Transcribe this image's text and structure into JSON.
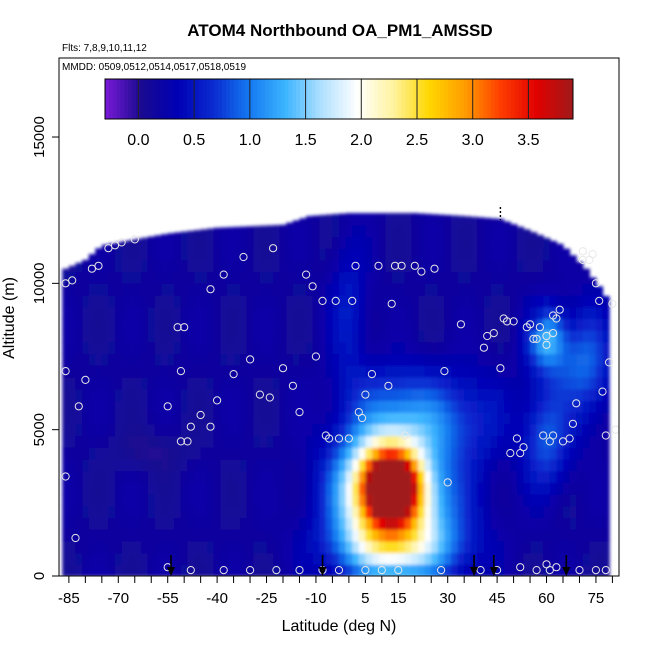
{
  "chart_data": {
    "type": "heatmap",
    "title": "ATOM4 Northbound OA_PM1_AMSSD",
    "flights_label": "Flts: 7,8,9,10,11,12",
    "dates_label": "MMDD: 0509,0512,0514,0517,0518,0519",
    "xlabel": "Latitude (deg N)",
    "ylabel": "Altitude (m)",
    "xlim": [
      -88,
      82
    ],
    "ylim": [
      0,
      17700
    ],
    "x_ticks": [
      -85,
      -70,
      -55,
      -40,
      -25,
      -10,
      5,
      15,
      30,
      45,
      60,
      75
    ],
    "x_tick_labels": [
      "-85",
      "-70",
      "-55",
      "-40",
      "-25",
      "-10",
      "5",
      "15",
      "30",
      "45",
      "60",
      "75"
    ],
    "y_ticks": [
      0,
      5000,
      10000,
      15000
    ],
    "y_tick_labels": [
      "0",
      "5000",
      "10000",
      "15000"
    ],
    "colorbar": {
      "vmin": -0.3,
      "vmax": 3.9,
      "ticks": [
        0.0,
        0.5,
        1.0,
        1.5,
        2.0,
        2.5,
        3.0,
        3.5
      ],
      "tick_labels": [
        "0.0",
        "0.5",
        "1.0",
        "1.5",
        "2.0",
        "2.5",
        "3.0",
        "3.5"
      ],
      "colors": [
        "#7a1ad8",
        "#1a0a90",
        "#0000b4",
        "#0a2ad0",
        "#1478f0",
        "#3cb4ff",
        "#aee0ff",
        "#ffffff",
        "#fff3a0",
        "#ffd700",
        "#ff9c00",
        "#ff3c00",
        "#e00000",
        "#a01a1a"
      ]
    },
    "background_value": 0.15,
    "envelope": [
      {
        "lat": -86,
        "top": 10500
      },
      {
        "lat": -80,
        "top": 10800
      },
      {
        "lat": -75,
        "top": 11300
      },
      {
        "lat": -65,
        "top": 11500
      },
      {
        "lat": -55,
        "top": 11700
      },
      {
        "lat": -40,
        "top": 11900
      },
      {
        "lat": -20,
        "top": 12000
      },
      {
        "lat": -12,
        "top": 12300
      },
      {
        "lat": 0,
        "top": 12400
      },
      {
        "lat": 20,
        "top": 12400
      },
      {
        "lat": 35,
        "top": 12300
      },
      {
        "lat": 46,
        "top": 12200
      },
      {
        "lat": 55,
        "top": 11800
      },
      {
        "lat": 65,
        "top": 11300
      },
      {
        "lat": 72,
        "top": 10500
      },
      {
        "lat": 76,
        "top": 9900
      },
      {
        "lat": 79,
        "top": 9400
      }
    ],
    "hotspots": [
      {
        "lat": 13,
        "alt": 3100,
        "value": 3.2,
        "sx": 5,
        "sy": 700
      },
      {
        "lat": 10,
        "alt": 3000,
        "value": 2.2,
        "sx": 9,
        "sy": 1300
      },
      {
        "lat": 16,
        "alt": 2300,
        "value": 1.6,
        "sx": 12,
        "sy": 1700
      },
      {
        "lat": 14,
        "alt": 1000,
        "value": 0.9,
        "sx": 14,
        "sy": 700
      },
      {
        "lat": 20,
        "alt": 5200,
        "value": 0.8,
        "sx": 12,
        "sy": 900
      },
      {
        "lat": 15,
        "alt": 6500,
        "value": 0.45,
        "sx": 12,
        "sy": 700
      },
      {
        "lat": 60,
        "alt": 8200,
        "value": 1.2,
        "sx": 4,
        "sy": 700
      },
      {
        "lat": 60,
        "alt": 4700,
        "value": 0.85,
        "sx": 5,
        "sy": 1200
      },
      {
        "lat": 73,
        "alt": 7300,
        "value": 0.75,
        "sx": 5,
        "sy": 1400
      },
      {
        "lat": 0,
        "alt": 9000,
        "value": 0.55,
        "sx": 4,
        "sy": 1600
      },
      {
        "lat": 38,
        "alt": 5500,
        "value": 0.4,
        "sx": 8,
        "sy": 1200
      },
      {
        "lat": 57,
        "alt": 8700,
        "value": -0.15,
        "sx": 2,
        "sy": 300
      },
      {
        "lat": -60,
        "alt": 4300,
        "value": 0.0,
        "sx": 8,
        "sy": 500
      },
      {
        "lat": 65,
        "alt": 7200,
        "value": 0.5,
        "sx": 6,
        "sy": 900
      }
    ],
    "observation_points": [
      [
        -86,
        7000
      ],
      [
        -86,
        10000
      ],
      [
        -84,
        10100
      ],
      [
        -86,
        3400
      ],
      [
        -82,
        5800
      ],
      [
        -80,
        6700
      ],
      [
        -78,
        10500
      ],
      [
        -76,
        10600
      ],
      [
        -73,
        11200
      ],
      [
        -71,
        11300
      ],
      [
        -69,
        11400
      ],
      [
        -65,
        11500
      ],
      [
        -55,
        5800
      ],
      [
        -52,
        8500
      ],
      [
        -50,
        8500
      ],
      [
        -51,
        4600
      ],
      [
        -49,
        4600
      ],
      [
        -51,
        7000
      ],
      [
        -48,
        5100
      ],
      [
        -45,
        5500
      ],
      [
        -42,
        5100
      ],
      [
        -42,
        9800
      ],
      [
        -40,
        6000
      ],
      [
        -38,
        10300
      ],
      [
        -35,
        6900
      ],
      [
        -32,
        10900
      ],
      [
        -30,
        7400
      ],
      [
        -27,
        6200
      ],
      [
        -24,
        6100
      ],
      [
        -23,
        11200
      ],
      [
        -20,
        7100
      ],
      [
        -17,
        6500
      ],
      [
        -15,
        5600
      ],
      [
        -13,
        10300
      ],
      [
        -11,
        9900
      ],
      [
        -10,
        7500
      ],
      [
        -8,
        9400
      ],
      [
        -7,
        4800
      ],
      [
        -6,
        4700
      ],
      [
        -4,
        9400
      ],
      [
        -3,
        4700
      ],
      [
        0,
        4700
      ],
      [
        1,
        9400
      ],
      [
        2,
        10600
      ],
      [
        3,
        5600
      ],
      [
        4,
        5400
      ],
      [
        5,
        6200
      ],
      [
        7,
        6900
      ],
      [
        9,
        10600
      ],
      [
        12,
        6500
      ],
      [
        13,
        9300
      ],
      [
        14,
        10600
      ],
      [
        16,
        10600
      ],
      [
        17,
        4800
      ],
      [
        20,
        10600
      ],
      [
        22,
        10400
      ],
      [
        26,
        10500
      ],
      [
        29,
        7000
      ],
      [
        30,
        3200
      ],
      [
        34,
        8600
      ],
      [
        41,
        7800
      ],
      [
        42,
        8200
      ],
      [
        44,
        8300
      ],
      [
        46,
        7100
      ],
      [
        47,
        8800
      ],
      [
        48,
        8700
      ],
      [
        50,
        8700
      ],
      [
        51,
        4700
      ],
      [
        49,
        4200
      ],
      [
        52,
        4200
      ],
      [
        53,
        4400
      ],
      [
        54,
        8500
      ],
      [
        55,
        8600
      ],
      [
        56,
        8100
      ],
      [
        57,
        8100
      ],
      [
        58,
        8500
      ],
      [
        59,
        4800
      ],
      [
        60,
        8200
      ],
      [
        60,
        7900
      ],
      [
        61,
        4600
      ],
      [
        62,
        4800
      ],
      [
        62,
        8300
      ],
      [
        62,
        8900
      ],
      [
        63,
        8800
      ],
      [
        64,
        9100
      ],
      [
        65,
        4600
      ],
      [
        67,
        4700
      ],
      [
        68,
        5200
      ],
      [
        69,
        5900
      ],
      [
        71,
        11100
      ],
      [
        71,
        10800
      ],
      [
        73,
        10800
      ],
      [
        74,
        11000
      ],
      [
        75,
        10000
      ],
      [
        76,
        9400
      ],
      [
        77,
        6300
      ],
      [
        78,
        4800
      ],
      [
        79,
        7300
      ],
      [
        81,
        5000
      ],
      [
        80,
        9300
      ],
      [
        -83,
        1300
      ],
      [
        -55,
        300
      ],
      [
        -48,
        200
      ],
      [
        -38,
        200
      ],
      [
        -30,
        200
      ],
      [
        -22,
        200
      ],
      [
        -15,
        200
      ],
      [
        -8,
        200
      ],
      [
        -3,
        200
      ],
      [
        5,
        200
      ],
      [
        10,
        200
      ],
      [
        15,
        200
      ],
      [
        28,
        200
      ],
      [
        40,
        200
      ],
      [
        45,
        200
      ],
      [
        52,
        300
      ],
      [
        57,
        200
      ],
      [
        60,
        400
      ],
      [
        61,
        200
      ],
      [
        63,
        300
      ],
      [
        70,
        200
      ],
      [
        75,
        200
      ],
      [
        78,
        200
      ]
    ],
    "profile_markers": [
      -54,
      -8,
      38,
      44,
      66
    ],
    "profile_markers_top": [
      46
    ],
    "grid": false
  }
}
